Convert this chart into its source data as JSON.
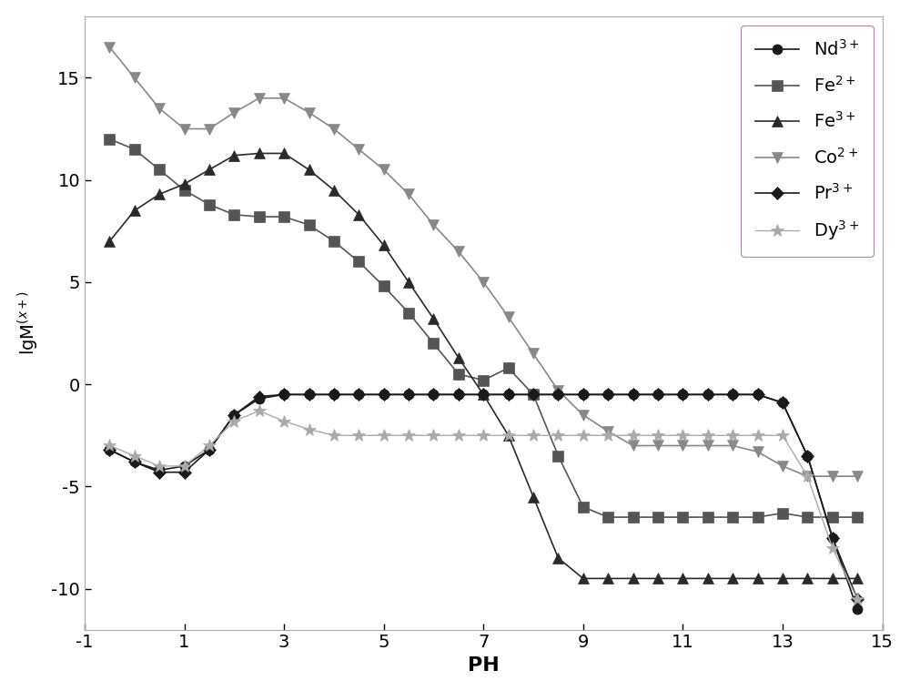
{
  "title": "",
  "xlabel": "PH",
  "ylabel": "lgM(x+)",
  "xlim": [
    -1,
    15
  ],
  "ylim": [
    -12,
    18
  ],
  "xticks": [
    -1,
    1,
    3,
    5,
    7,
    9,
    11,
    13,
    15
  ],
  "yticks": [
    -10,
    -5,
    0,
    5,
    10,
    15
  ],
  "bg_color": "#ffffff",
  "series": {
    "Nd3+": {
      "color": "#1a1a1a",
      "marker": "o",
      "markersize": 8,
      "linewidth": 1.2,
      "linestyle": "-",
      "x": [
        -0.5,
        0.0,
        0.5,
        1.0,
        1.5,
        2.0,
        2.5,
        3.0,
        3.5,
        4.0,
        4.5,
        5.0,
        5.5,
        6.0,
        6.5,
        7.0,
        7.5,
        8.0,
        8.5,
        9.0,
        9.5,
        10.0,
        10.5,
        11.0,
        11.5,
        12.0,
        12.5,
        13.0,
        13.5,
        14.0,
        14.5
      ],
      "y": [
        -3.2,
        -3.8,
        -4.2,
        -4.0,
        -3.2,
        -1.5,
        -0.7,
        -0.5,
        -0.5,
        -0.5,
        -0.5,
        -0.5,
        -0.5,
        -0.5,
        -0.5,
        -0.5,
        -0.5,
        -0.5,
        -0.5,
        -0.5,
        -0.5,
        -0.5,
        -0.5,
        -0.5,
        -0.5,
        -0.5,
        -0.5,
        -0.9,
        -3.5,
        -7.5,
        -11.0
      ]
    },
    "Fe2+": {
      "color": "#555555",
      "marker": "s",
      "markersize": 8,
      "linewidth": 1.2,
      "linestyle": "-",
      "x": [
        -0.5,
        0.0,
        0.5,
        1.0,
        1.5,
        2.0,
        2.5,
        3.0,
        3.5,
        4.0,
        4.5,
        5.0,
        5.5,
        6.0,
        6.5,
        7.0,
        7.5,
        8.0,
        8.5,
        9.0,
        9.5,
        10.0,
        10.5,
        11.0,
        11.5,
        12.0,
        12.5,
        13.0,
        13.5,
        14.0,
        14.5
      ],
      "y": [
        12.0,
        11.5,
        10.5,
        9.5,
        8.8,
        8.3,
        8.2,
        8.2,
        7.8,
        7.0,
        6.0,
        4.8,
        3.5,
        2.0,
        0.5,
        0.2,
        0.8,
        -0.5,
        -3.5,
        -6.0,
        -6.5,
        -6.5,
        -6.5,
        -6.5,
        -6.5,
        -6.5,
        -6.5,
        -6.3,
        -6.5,
        -6.5,
        -6.5
      ]
    },
    "Fe3+": {
      "color": "#2a2a2a",
      "marker": "^",
      "markersize": 8,
      "linewidth": 1.2,
      "linestyle": "-",
      "x": [
        -0.5,
        0.0,
        0.5,
        1.0,
        1.5,
        2.0,
        2.5,
        3.0,
        3.5,
        4.0,
        4.5,
        5.0,
        5.5,
        6.0,
        6.5,
        7.0,
        7.5,
        8.0,
        8.5,
        9.0,
        9.5,
        10.0,
        10.5,
        11.0,
        11.5,
        12.0,
        12.5,
        13.0,
        13.5,
        14.0,
        14.5
      ],
      "y": [
        7.0,
        8.5,
        9.3,
        9.8,
        10.5,
        11.2,
        11.3,
        11.3,
        10.5,
        9.5,
        8.3,
        6.8,
        5.0,
        3.2,
        1.3,
        -0.5,
        -2.5,
        -5.5,
        -8.5,
        -9.5,
        -9.5,
        -9.5,
        -9.5,
        -9.5,
        -9.5,
        -9.5,
        -9.5,
        -9.5,
        -9.5,
        -9.5,
        -9.5
      ]
    },
    "Co2+": {
      "color": "#888888",
      "marker": "v",
      "markersize": 9,
      "linewidth": 1.2,
      "linestyle": "-",
      "x": [
        -0.5,
        0.0,
        0.5,
        1.0,
        1.5,
        2.0,
        2.5,
        3.0,
        3.5,
        4.0,
        4.5,
        5.0,
        5.5,
        6.0,
        6.5,
        7.0,
        7.5,
        8.0,
        8.5,
        9.0,
        9.5,
        10.0,
        10.5,
        11.0,
        11.5,
        12.0,
        12.5,
        13.0,
        13.5,
        14.0,
        14.5
      ],
      "y": [
        16.5,
        15.0,
        13.5,
        12.5,
        12.5,
        13.3,
        14.0,
        14.0,
        13.3,
        12.5,
        11.5,
        10.5,
        9.3,
        7.8,
        6.5,
        5.0,
        3.3,
        1.5,
        -0.3,
        -1.5,
        -2.3,
        -3.0,
        -3.0,
        -3.0,
        -3.0,
        -3.0,
        -3.3,
        -4.0,
        -4.5,
        -4.5,
        -4.5
      ]
    },
    "Pr3+": {
      "color": "#1a1a1a",
      "marker": "D",
      "markersize": 7,
      "linewidth": 1.2,
      "linestyle": "-",
      "x": [
        -0.5,
        0.0,
        0.5,
        1.0,
        1.5,
        2.0,
        2.5,
        3.0,
        3.5,
        4.0,
        4.5,
        5.0,
        5.5,
        6.0,
        6.5,
        7.0,
        7.5,
        8.0,
        8.5,
        9.0,
        9.5,
        10.0,
        10.5,
        11.0,
        11.5,
        12.0,
        12.5,
        13.0,
        13.5,
        14.0,
        14.5
      ],
      "y": [
        -3.2,
        -3.8,
        -4.3,
        -4.3,
        -3.2,
        -1.5,
        -0.6,
        -0.5,
        -0.5,
        -0.5,
        -0.5,
        -0.5,
        -0.5,
        -0.5,
        -0.5,
        -0.5,
        -0.5,
        -0.5,
        -0.5,
        -0.5,
        -0.5,
        -0.5,
        -0.5,
        -0.5,
        -0.5,
        -0.5,
        -0.5,
        -0.9,
        -3.5,
        -7.5,
        -10.5
      ]
    },
    "Dy3+": {
      "color": "#aaaaaa",
      "marker": "*",
      "markersize": 10,
      "linewidth": 1.0,
      "linestyle": "-",
      "x": [
        -0.5,
        0.0,
        0.5,
        1.0,
        1.5,
        2.0,
        2.5,
        3.0,
        3.5,
        4.0,
        4.5,
        5.0,
        5.5,
        6.0,
        6.5,
        7.0,
        7.5,
        8.0,
        8.5,
        9.0,
        9.5,
        10.0,
        10.5,
        11.0,
        11.5,
        12.0,
        12.5,
        13.0,
        13.5,
        14.0,
        14.5
      ],
      "y": [
        -3.0,
        -3.5,
        -4.0,
        -4.0,
        -3.0,
        -1.8,
        -1.3,
        -1.8,
        -2.2,
        -2.5,
        -2.5,
        -2.5,
        -2.5,
        -2.5,
        -2.5,
        -2.5,
        -2.5,
        -2.5,
        -2.5,
        -2.5,
        -2.5,
        -2.5,
        -2.5,
        -2.5,
        -2.5,
        -2.5,
        -2.5,
        -2.5,
        -4.5,
        -8.0,
        -10.5
      ]
    }
  },
  "legend_order": [
    "Nd3+",
    "Fe2+",
    "Fe3+",
    "Co2+",
    "Pr3+",
    "Dy3+"
  ],
  "legend_labels": {
    "Nd3+": "Nd$^{3+}$",
    "Fe2+": "Fe$^{2+}$",
    "Fe3+": "Fe$^{3+}$",
    "Co2+": "Co$^{2+}$",
    "Pr3+": "Pr$^{3+}$",
    "Dy3+": "Dy$^{3+}$"
  }
}
